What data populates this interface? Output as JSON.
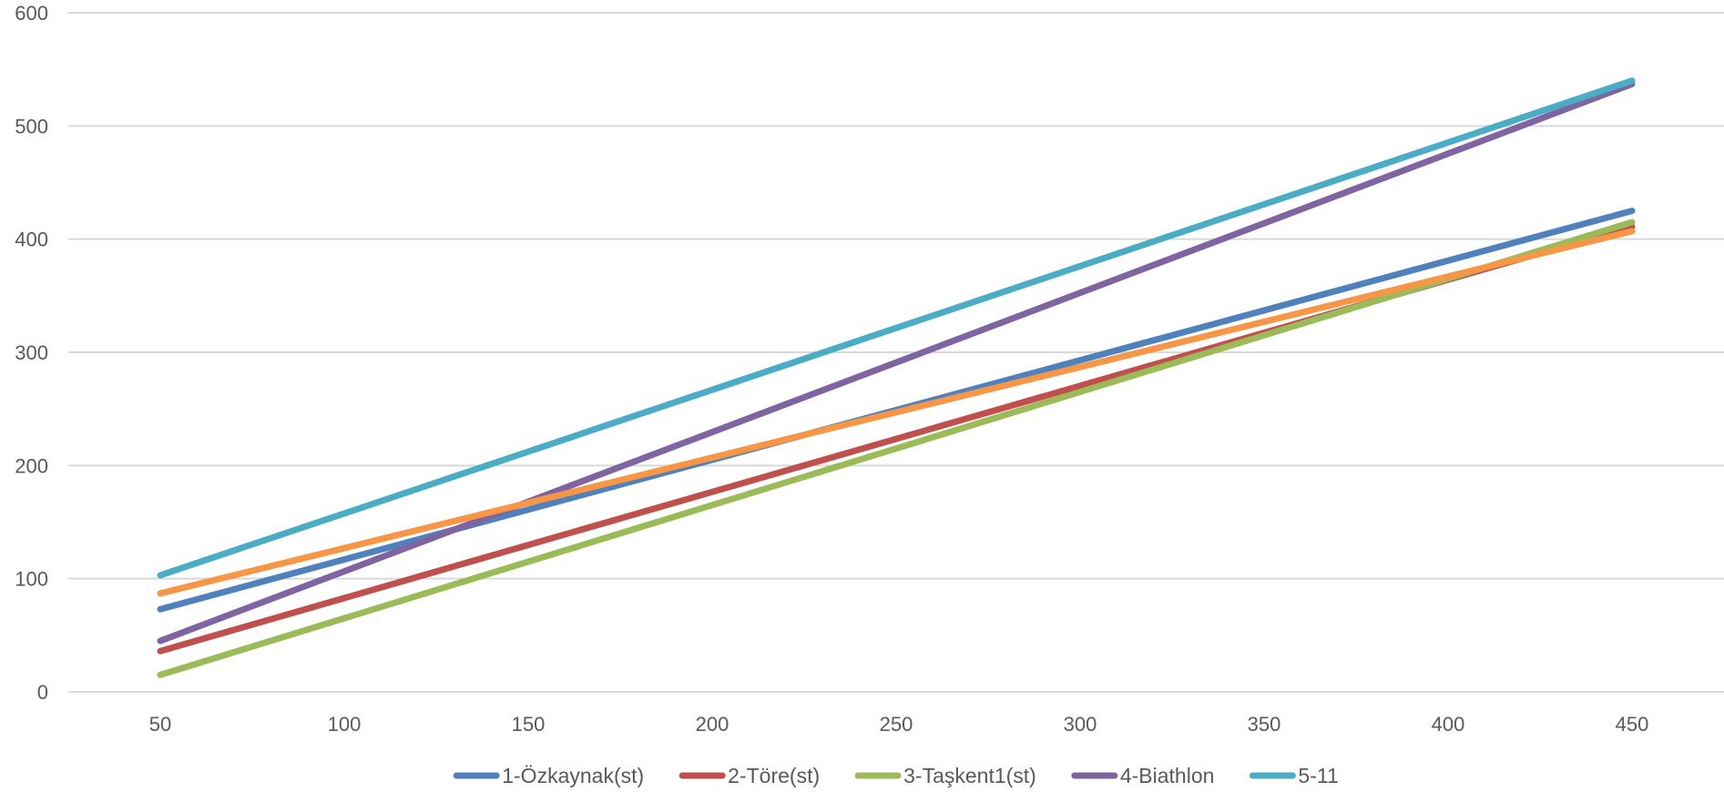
{
  "chart_data": {
    "type": "line",
    "title": "",
    "xlabel": "",
    "ylabel": "",
    "x": [
      50,
      450
    ],
    "xlim": [
      25,
      475
    ],
    "ylim": [
      0,
      600
    ],
    "x_ticks": [
      50,
      100,
      150,
      200,
      250,
      300,
      350,
      400,
      450
    ],
    "y_ticks": [
      0,
      100,
      200,
      300,
      400,
      500,
      600
    ],
    "grid": "horizontal",
    "legend_position": "bottom",
    "series": [
      {
        "name": "1-Özkaynak(st)",
        "color": "#4f81bd",
        "values": [
          73,
          425
        ]
      },
      {
        "name": "2-Töre(st)",
        "color": "#c0504d",
        "values": [
          36,
          411
        ]
      },
      {
        "name": "3-Taşkent1(st)",
        "color": "#9bbb59",
        "values": [
          15,
          415
        ]
      },
      {
        "name": "4-Biathlon",
        "color": "#8064a2",
        "values": [
          45,
          537
        ]
      },
      {
        "name": "5-11",
        "color": "#4bacc6",
        "values": [
          103,
          540
        ]
      },
      {
        "color": "#f79646",
        "values": [
          87,
          407
        ]
      }
    ]
  }
}
